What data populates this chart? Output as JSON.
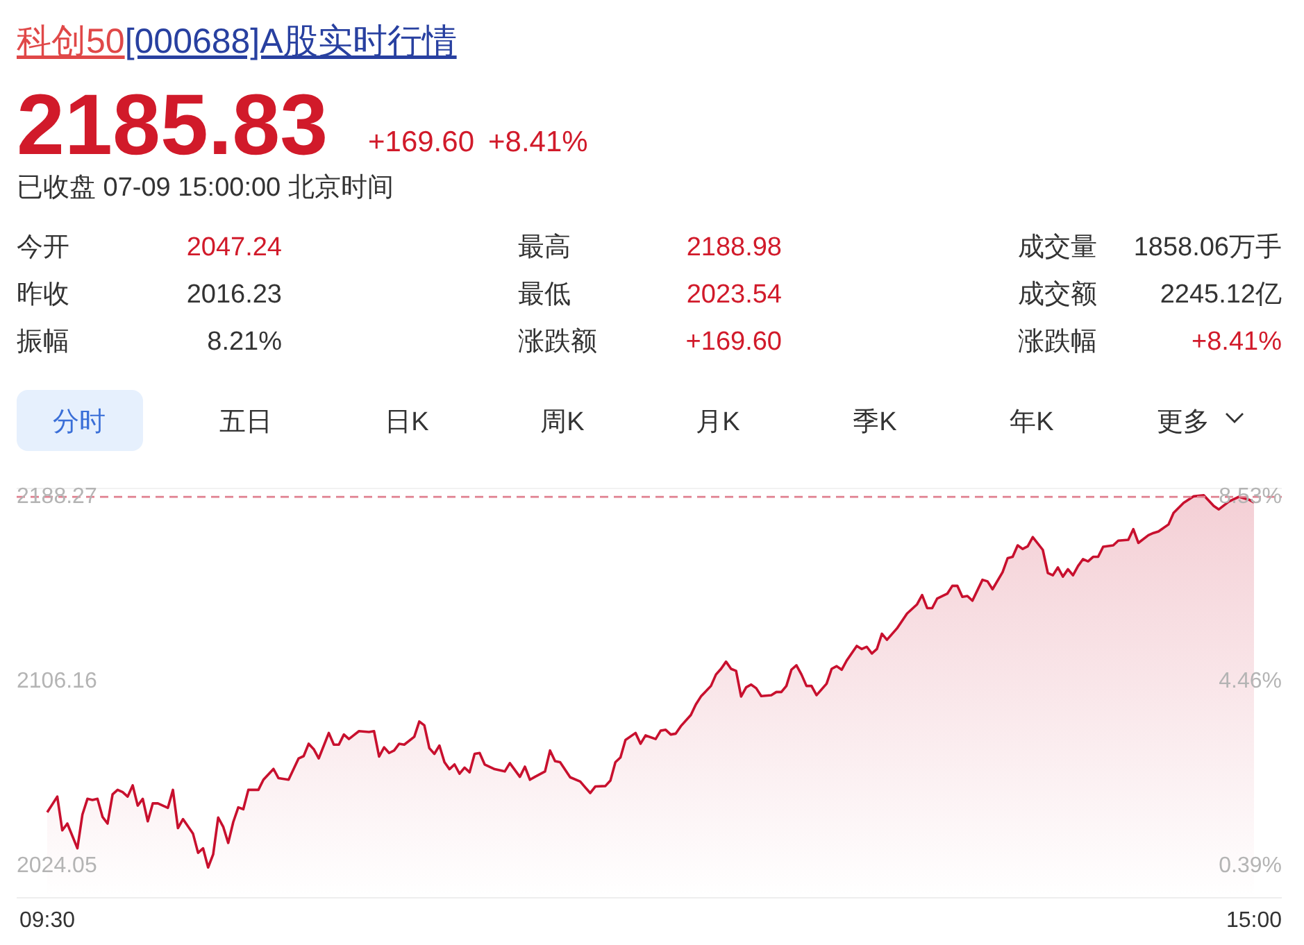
{
  "chart_data": [
    {
      "type": "other",
      "title": "科创50[000688]A股实时行情",
      "subtitle": "已收盘 07-09 15:00:00 北京时间",
      "annotations": [
        "2185.83",
        "+169.60",
        "+8.41%",
        "今开",
        "2047.24",
        "最高",
        "2188.98",
        "成交量",
        "1858.06万手",
        "昨收",
        "2016.23",
        "最低",
        "2023.54",
        "成交额",
        "2245.12亿",
        "振幅",
        "8.21%",
        "涨跌额",
        "+169.60",
        "涨跌幅",
        "+8.41%",
        "分时",
        "五日",
        "日K",
        "周K",
        "月K",
        "季K",
        "年K",
        "更多"
      ]
    },
    {
      "type": "area",
      "grid": false,
      "categories": [
        "09:30",
        null,
        null,
        null,
        null,
        null,
        null,
        null,
        null,
        null,
        null,
        null,
        null,
        null,
        null,
        null,
        null,
        null,
        null,
        null,
        null,
        null,
        null,
        null,
        null,
        null,
        null,
        null,
        null,
        null,
        null,
        null,
        null,
        null,
        null,
        null,
        null,
        null,
        null,
        null,
        null,
        null,
        null,
        null,
        null,
        null,
        null,
        null,
        null,
        null,
        null,
        null,
        null,
        null,
        null,
        null,
        null,
        null,
        null,
        null,
        null,
        null,
        null,
        null,
        null,
        null,
        null,
        null,
        null,
        null,
        null,
        null,
        null,
        null,
        null,
        null,
        null,
        null,
        null,
        null,
        null,
        null,
        null,
        null,
        null,
        null,
        null,
        null,
        null,
        null,
        null,
        null,
        null,
        null,
        null,
        null,
        null,
        null,
        null,
        null,
        null,
        null,
        null,
        null,
        null,
        null,
        null,
        null,
        null,
        null,
        null,
        null,
        null,
        null,
        null,
        null,
        null,
        null,
        null,
        null,
        null,
        null,
        null,
        null,
        null,
        null,
        null,
        null,
        null,
        null,
        null,
        null,
        null,
        null,
        null,
        null,
        null,
        null,
        null,
        null,
        null,
        null,
        null,
        null,
        null,
        null,
        null,
        null,
        null,
        null,
        null,
        null,
        null,
        null,
        null,
        null,
        null,
        null,
        null,
        null,
        null,
        null,
        null,
        null,
        null,
        null,
        null,
        null,
        null,
        null,
        null,
        null,
        null,
        null,
        null,
        null,
        null,
        null,
        null,
        null,
        null,
        null,
        null,
        null,
        null,
        null,
        null,
        null,
        null,
        null,
        null,
        null,
        null,
        null,
        null,
        null,
        null,
        null,
        null,
        null,
        null,
        null,
        null,
        null,
        null,
        null,
        null,
        null,
        null,
        null,
        null,
        null,
        null,
        null,
        null,
        null,
        null,
        null,
        null,
        null,
        null,
        null,
        null,
        null,
        null,
        null,
        null,
        null,
        null,
        null,
        null,
        null,
        null,
        null,
        null,
        null,
        null,
        null,
        null,
        null,
        "15:00"
      ],
      "ylim": [
        2010,
        2192
      ],
      "yticks": [
        2024.05,
        2106.16,
        2188.27
      ],
      "y2lim": [
        -0.309,
        8.718
      ],
      "y2ticks": [
        {
          "value": 0.39,
          "label": "0.39%"
        },
        {
          "value": 4.46,
          "label": "4.46%"
        },
        {
          "value": 8.53,
          "label": "8.53%"
        }
      ],
      "ref_lines": [
        {
          "axis": "y",
          "value": 2188.27,
          "color": "#e08090",
          "line_style": "dashed"
        }
      ],
      "series": [
        {
          "color": "#c8102e",
          "values": [
            2048,
            null,
            2055,
            2040,
            2043,
            null,
            2032,
            2047,
            2054,
            2053.5,
            2054,
            2046,
            2043,
            2056,
            2058,
            2057,
            2055,
            2060,
            2051,
            2054,
            2044,
            2052,
            2052,
            null,
            2050,
            2058,
            2041,
            2045,
            null,
            2038.5,
            2030,
            2032,
            2023.5,
            2029.3,
            2045.7,
            2041.6,
            2034.4,
            2043.7,
            2050.2,
            2049.4,
            2058,
            null,
            2058,
            2062.5,
            null,
            2067.3,
            2063.2,
            null,
            2062.5,
            null,
            2072,
            2073,
            2078.5,
            2076.1,
            2072,
            null,
            2083.3,
            2078.1,
            2078.1,
            2082.6,
            2080.6,
            null,
            2084.1,
            null,
            2083.7,
            2084.1,
            2072.8,
            2076.9,
            2074.4,
            2075.5,
            2078.5,
            2078.1,
            null,
            2081.6,
            2088.4,
            2086.7,
            2076.5,
            2074,
            2077.7,
            2070.3,
            2067.2,
            2069.3,
            2065.2,
            2067.9,
            2065.8,
            2074,
            2074.4,
            2069.3,
            null,
            2067.2,
            null,
            2066.2,
            2069.9,
            null,
            2063.8,
            2068.3,
            2062.5,
            2063.8,
            null,
            2066.2,
            2075.5,
            2070.8,
            2070.3,
            null,
            2063.6,
            null,
            2061.7,
            2059.1,
            2056.6,
            2059.5,
            null,
            2059.7,
            2062.1,
            2070.3,
            2072.4,
            2080.2,
            null,
            2083.3,
            2078.5,
            2082.2,
            null,
            2080.6,
            2084.3,
            2084.7,
            2082.6,
            2083.0,
            2086.3,
            null,
            2091.3,
            2096.0,
            2099.5,
            null,
            2104.2,
            2109.3,
            2111.8,
            2115.0,
            2111.8,
            2110.9,
            2099.5,
            2103.6,
            2104.8,
            2103.2,
            2099.7,
            null,
            2100.1,
            2101.5,
            2101.5,
            2104.2,
            2111.4,
            2113.4,
            2109.3,
            2104.2,
            2104.2,
            2100.1,
            null,
            2105.2,
            2111.8,
            2113.0,
            2111.4,
            2115.5,
            null,
            2122.0,
            2120.6,
            2121.6,
            2118.6,
            2120.6,
            2127.4,
            2124.7,
            null,
            2129.8,
            null,
            2136.4,
            null,
            2140.5,
            2144.6,
            2138.8,
            2138.8,
            2143.1,
            null,
            2145.2,
            2148.7,
            2148.7,
            2143.8,
            2144.2,
            2142.1,
            null,
            2151.4,
            2150.7,
            2147.2,
            null,
            2154.8,
            2161.0,
            2161.6,
            2166.7,
            2165.1,
            2166.3,
            2170.4,
            null,
            2164.7,
            2154.4,
            2153.4,
            2156.9,
            2152.8,
            2156.1,
            2153.4,
            2157.5,
            2160.6,
            2159.6,
            2161.6,
            2161.6,
            2166.1,
            null,
            2166.7,
            2168.8,
            null,
            2169.2,
            2173.9,
            2167.8,
            null,
            2171.2,
            2172.2,
            2172.9,
            null,
            2176.0,
            2181.1,
            null,
            2185.6,
            null,
            2188.5,
            null,
            2189.0,
            null,
            2184.2,
            2182.7,
            null,
            2186.2,
            null,
            2188.3,
            null,
            2187,
            2185.8
          ]
        }
      ]
    }
  ]
}
